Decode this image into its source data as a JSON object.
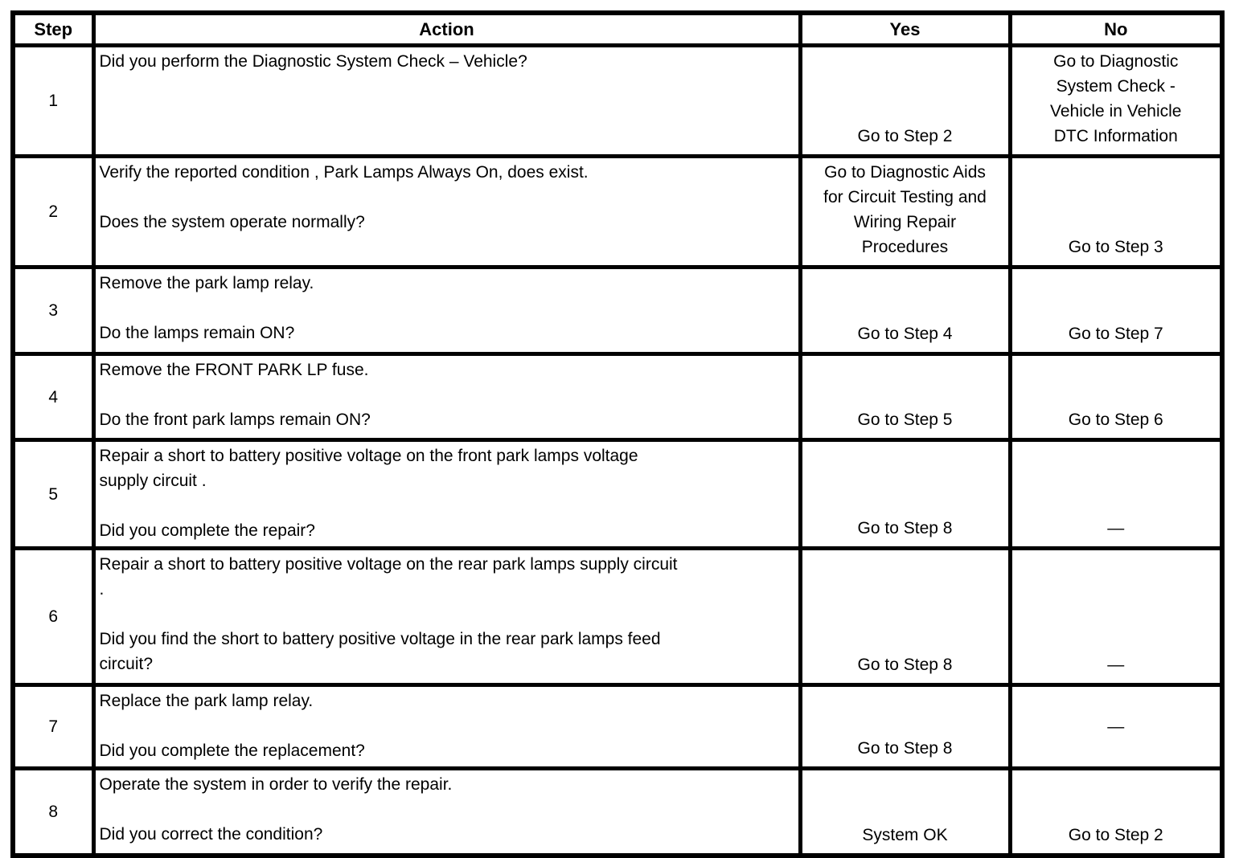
{
  "table": {
    "headers": {
      "step": "Step",
      "action": "Action",
      "yes": "Yes",
      "no": "No"
    },
    "rows": [
      {
        "step": "1",
        "action": "Did you perform the Diagnostic System Check – Vehicle?",
        "yes": "Go to Step 2",
        "no": "Go to Diagnostic\nSystem Check -\nVehicle in Vehicle\nDTC Information"
      },
      {
        "step": "2",
        "action": "Verify the reported condition , Park Lamps Always On, does exist.\n\nDoes the system operate normally?",
        "yes": "Go to Diagnostic Aids\nfor Circuit Testing and\nWiring Repair\nProcedures",
        "no": "Go to Step 3"
      },
      {
        "step": "3",
        "action": "Remove the park lamp relay.\n\nDo the lamps remain ON?",
        "yes": "Go to Step 4",
        "no": "Go to Step 7"
      },
      {
        "step": "4",
        "action": "Remove the FRONT PARK LP fuse.\n\nDo the front park lamps remain ON?",
        "yes": "Go to Step 5",
        "no": "Go to Step 6"
      },
      {
        "step": "5",
        "action": "Repair a short to battery positive voltage on the front park lamps voltage\nsupply circuit .\n\nDid you complete the repair?",
        "yes": "Go to Step 8",
        "no": "—"
      },
      {
        "step": "6",
        "action": "Repair a short to battery positive voltage on the rear park lamps supply circuit\n.\n\nDid you find the short to battery positive voltage in the rear park lamps feed\ncircuit?",
        "yes": "Go to Step 8",
        "no": "—"
      },
      {
        "step": "7",
        "action": "Replace the park lamp relay.\n\nDid you complete the replacement?",
        "yes": "Go to Step 8",
        "no": "—"
      },
      {
        "step": "8",
        "action": "Operate the system in order to verify the repair.\n\nDid you correct the condition?",
        "yes": "System OK",
        "no": "Go to Step 2"
      }
    ]
  }
}
